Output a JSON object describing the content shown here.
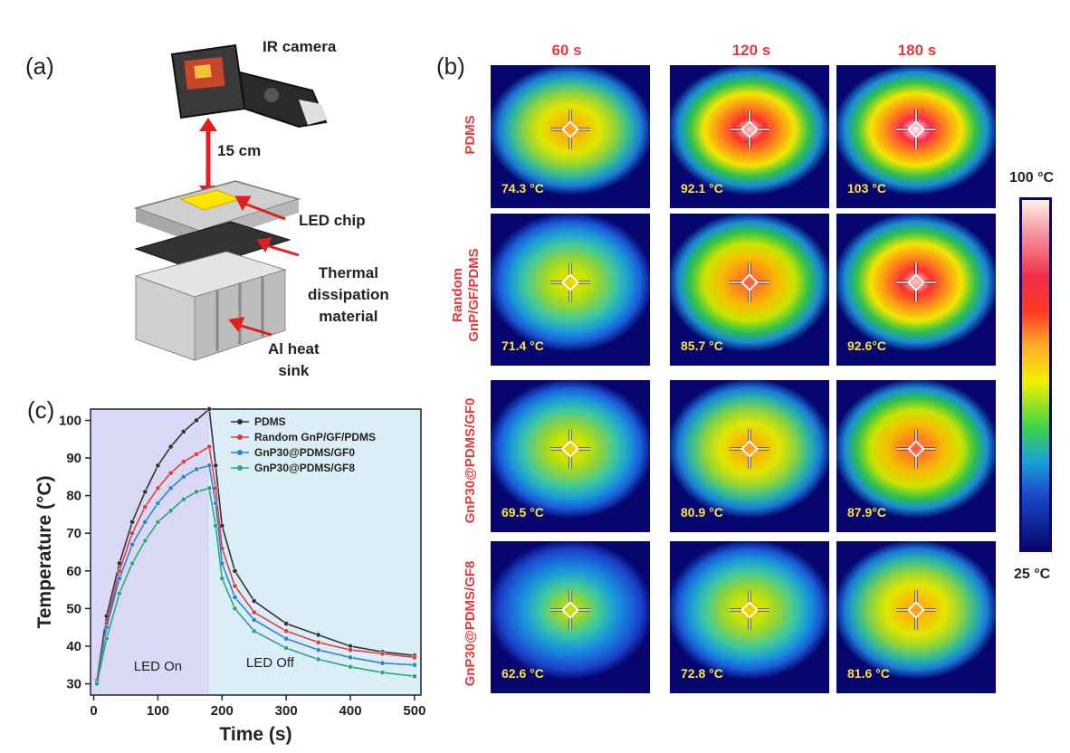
{
  "panel_a": {
    "label": "(a)",
    "ir_camera": "IR camera",
    "distance": "15 cm",
    "led_chip": "LED chip",
    "thermal_lines": [
      "Thermal",
      "dissipation",
      "material"
    ],
    "heat_sink_lines": [
      "Al heat",
      "sink"
    ]
  },
  "panel_b": {
    "label": "(b)",
    "time_labels": [
      "60 s",
      "120 s",
      "180 s"
    ],
    "rows": [
      {
        "label_lines": [
          "PDMS"
        ],
        "temps": [
          "74.3 °C",
          "92.1 °C",
          "103 °C"
        ],
        "levels": [
          0.55,
          0.8,
          1.0
        ]
      },
      {
        "label_lines": [
          "Random",
          "GnP/GF/PDMS"
        ],
        "temps": [
          "71.4 °C",
          "85.7 °C",
          "92.6°C"
        ],
        "levels": [
          0.5,
          0.7,
          0.8
        ]
      },
      {
        "label_lines": [
          "GnP30@PDMS/GF0"
        ],
        "temps": [
          "69.5 °C",
          "80.9 °C",
          "87.9°C"
        ],
        "levels": [
          0.45,
          0.62,
          0.72
        ]
      },
      {
        "label_lines": [
          "GnP30@PDMS/GF8"
        ],
        "temps": [
          "62.6 °C",
          "72.8 °C",
          "81.6 °C"
        ],
        "levels": [
          0.35,
          0.5,
          0.62
        ]
      }
    ],
    "colorbar_max": "100 °C",
    "colorbar_min": "25 °C",
    "colors": {
      "label_red": "#e0393e",
      "background": "#06066e"
    }
  },
  "chart_data": {
    "label": "(c)",
    "type": "line",
    "xlabel": "Time (s)",
    "ylabel": "Temperature (°C)",
    "xlim": [
      -5,
      510
    ],
    "ylim": [
      27,
      103
    ],
    "xticks": [
      0,
      100,
      200,
      300,
      400,
      500
    ],
    "yticks": [
      30,
      40,
      50,
      60,
      70,
      80,
      90,
      100
    ],
    "shaded_regions": [
      {
        "label": "LED On",
        "x_range": [
          -5,
          180
        ],
        "color": "#d9d9f5"
      },
      {
        "label": "LED Off",
        "x_range": [
          180,
          510
        ],
        "color": "#dbeef8"
      }
    ],
    "x": [
      5,
      20,
      40,
      60,
      80,
      100,
      120,
      140,
      160,
      180,
      190,
      200,
      220,
      250,
      300,
      350,
      400,
      450,
      500
    ],
    "series": [
      {
        "name": "PDMS",
        "color": "#333333",
        "values": [
          31,
          48,
          62,
          73,
          81,
          88,
          93,
          97,
          100,
          103,
          88,
          72,
          60,
          52,
          46,
          43,
          40,
          38.5,
          37.5
        ]
      },
      {
        "name": "Random GnP/GF/PDMS",
        "color": "#e03c3c",
        "values": [
          31,
          46,
          60,
          70,
          77,
          82,
          86,
          89,
          91,
          93,
          82,
          66,
          56,
          49,
          44,
          41,
          39,
          38,
          37
        ]
      },
      {
        "name": "GnP30@PDMS/GF0",
        "color": "#2e7fd9",
        "values": [
          30.5,
          45,
          58,
          67,
          73,
          78,
          82,
          85,
          87,
          88,
          78,
          62,
          53,
          47,
          42,
          39,
          37,
          35.5,
          35
        ]
      },
      {
        "name": "GnP30@PDMS/GF8",
        "color": "#2aa879",
        "values": [
          30,
          42,
          54,
          62,
          68,
          73,
          76,
          79,
          81,
          82,
          72,
          58,
          50,
          44,
          39.5,
          36.5,
          34.5,
          33,
          32
        ]
      }
    ]
  }
}
